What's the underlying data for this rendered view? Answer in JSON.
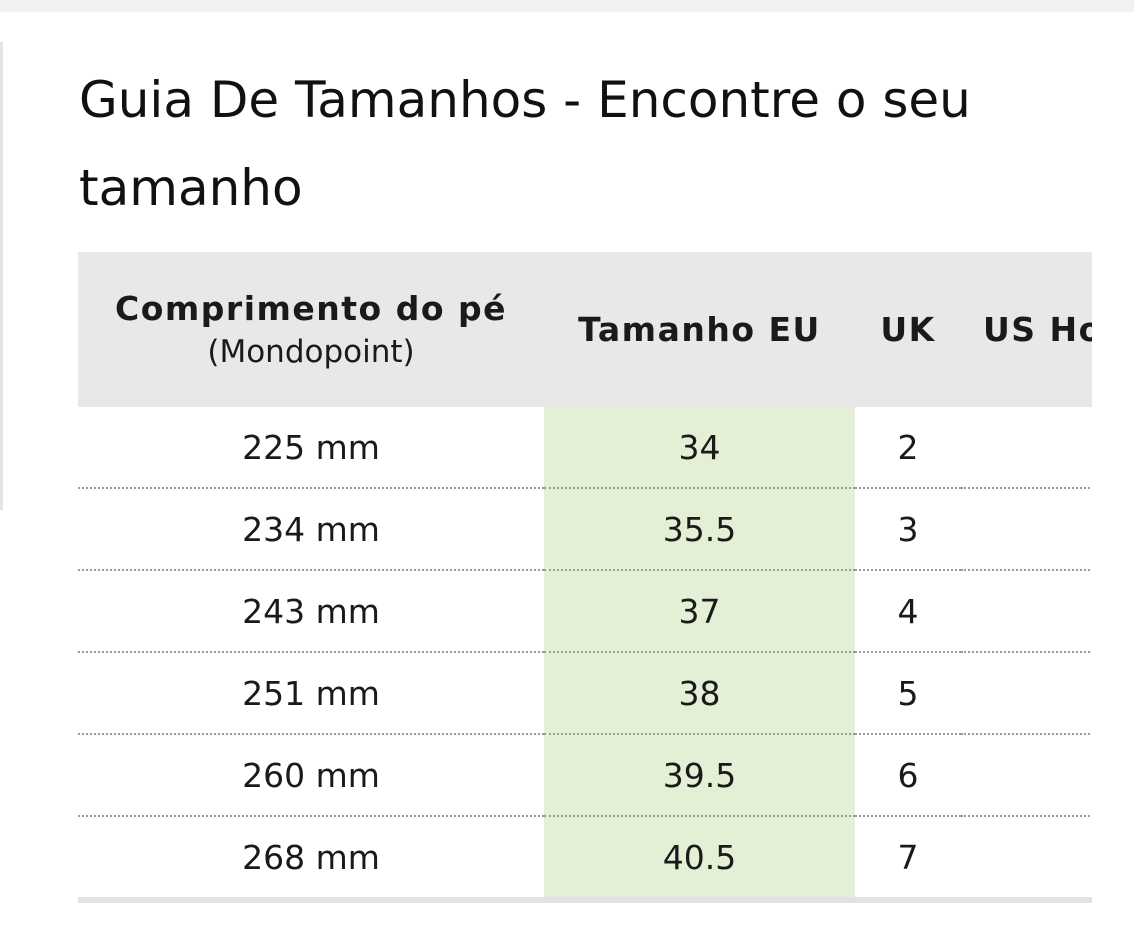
{
  "page": {
    "title": "Guia De Tamanhos - Encontre o seu tamanho"
  },
  "table": {
    "headers": {
      "foot_length": "Comprimento do pé",
      "foot_length_sub": "(Mondopoint)",
      "eu": "Tamanho EU",
      "uk": "UK",
      "us": "US Ho"
    },
    "rows": [
      {
        "length": "225 mm",
        "eu": "34",
        "uk": "2",
        "us": ""
      },
      {
        "length": "234 mm",
        "eu": "35.5",
        "uk": "3",
        "us": ""
      },
      {
        "length": "243 mm",
        "eu": "37",
        "uk": "4",
        "us": ""
      },
      {
        "length": "251 mm",
        "eu": "38",
        "uk": "5",
        "us": ""
      },
      {
        "length": "260 mm",
        "eu": "39.5",
        "uk": "6",
        "us": ""
      },
      {
        "length": "268 mm",
        "eu": "40.5",
        "uk": "7",
        "us": ""
      }
    ]
  },
  "colors": {
    "header_bg": "#e8e8e8",
    "eu_highlight": "#e3f0d6",
    "text": "#1a1a1a"
  }
}
